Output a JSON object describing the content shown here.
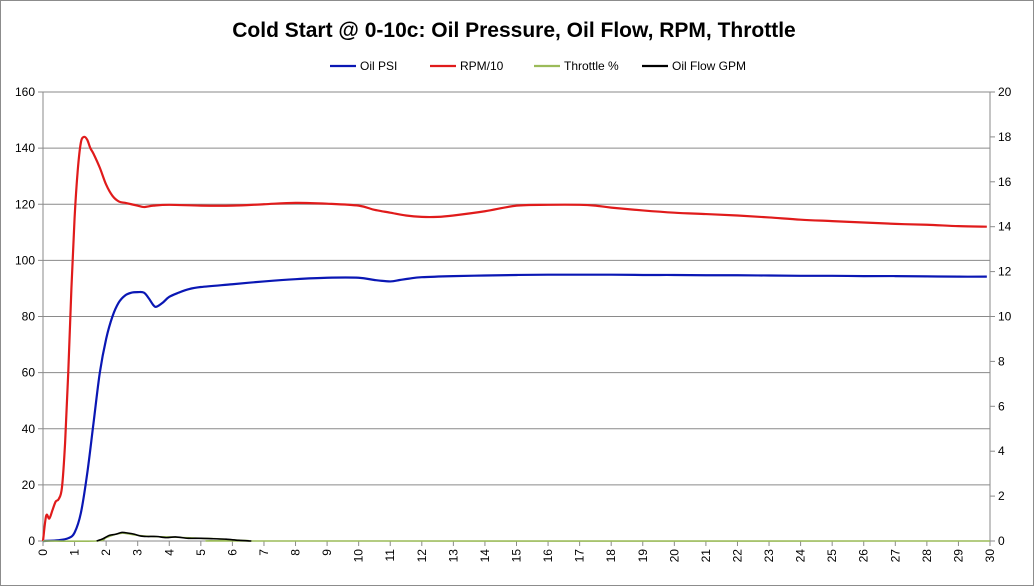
{
  "chart_data": {
    "type": "line",
    "title": "Cold Start @ 0-10c: Oil Pressure, Oil Flow, RPM, Throttle",
    "xlabel": "",
    "ylabel": "",
    "y2label": "",
    "xlim": [
      0,
      30
    ],
    "ylim": [
      0,
      160
    ],
    "y2lim": [
      0,
      20
    ],
    "x_ticks": [
      0,
      1,
      2,
      3,
      4,
      5,
      6,
      7,
      8,
      9,
      10,
      11,
      12,
      13,
      14,
      15,
      16,
      17,
      18,
      19,
      20,
      21,
      22,
      23,
      24,
      25,
      26,
      27,
      28,
      29,
      30
    ],
    "y_ticks": [
      0,
      20,
      40,
      60,
      80,
      100,
      120,
      140,
      160
    ],
    "y2_ticks": [
      0,
      2,
      4,
      6,
      8,
      10,
      12,
      14,
      16,
      18,
      20
    ],
    "grid": "horizontal",
    "legend_position": "top",
    "series": [
      {
        "name": "Oil PSI",
        "axis": "left",
        "color": "#0a17b4",
        "x": [
          0,
          0.5,
          0.8,
          1.0,
          1.2,
          1.4,
          1.6,
          1.8,
          2.0,
          2.2,
          2.4,
          2.6,
          2.8,
          3.0,
          3.2,
          3.35,
          3.5,
          3.6,
          3.8,
          4.0,
          4.3,
          4.6,
          5.0,
          6.0,
          7.0,
          8.0,
          9.0,
          10.0,
          10.5,
          11.0,
          11.3,
          11.6,
          12.0,
          13.0,
          14.0,
          15.0,
          16.0,
          17.0,
          18.0,
          19.0,
          20.0,
          21.0,
          22.0,
          23.0,
          24.0,
          25.0,
          26.0,
          27.0,
          28.0,
          29.0,
          29.9
        ],
        "values": [
          0,
          0.3,
          1,
          3,
          10,
          24,
          42,
          60,
          72,
          80,
          85,
          87.5,
          88.5,
          88.7,
          88.5,
          86.5,
          84,
          83.5,
          85,
          87,
          88.5,
          89.7,
          90.5,
          91.5,
          92.5,
          93.3,
          93.8,
          93.8,
          93,
          92.5,
          93,
          93.5,
          94,
          94.4,
          94.6,
          94.8,
          94.9,
          94.9,
          94.9,
          94.8,
          94.8,
          94.7,
          94.7,
          94.6,
          94.5,
          94.5,
          94.4,
          94.4,
          94.3,
          94.2,
          94.2
        ]
      },
      {
        "name": "RPM/10",
        "axis": "left",
        "color": "#e01b1b",
        "x": [
          0,
          0.1,
          0.2,
          0.3,
          0.4,
          0.5,
          0.6,
          0.7,
          0.8,
          0.9,
          1.0,
          1.1,
          1.2,
          1.3,
          1.4,
          1.5,
          1.6,
          1.8,
          2.0,
          2.2,
          2.4,
          2.6,
          2.8,
          3.0,
          3.2,
          3.5,
          4.0,
          5.0,
          6.0,
          7.0,
          8.0,
          9.0,
          10.0,
          10.5,
          11.0,
          11.5,
          12.0,
          12.5,
          13.0,
          14.0,
          15.0,
          16.0,
          17.0,
          17.5,
          18.0,
          19.0,
          20.0,
          21.0,
          22.0,
          23.0,
          24.0,
          25.0,
          26.0,
          27.0,
          28.0,
          29.0,
          29.9
        ],
        "values": [
          0,
          9,
          8,
          11,
          14,
          15,
          19,
          35,
          60,
          90,
          115,
          132,
          142,
          144,
          143,
          140,
          138,
          133,
          127,
          123,
          121,
          120.5,
          120,
          119.5,
          119,
          119.5,
          119.8,
          119.5,
          119.5,
          120,
          120.5,
          120.2,
          119.5,
          118,
          117,
          116,
          115.5,
          115.5,
          116,
          117.5,
          119.5,
          119.8,
          119.8,
          119.5,
          118.8,
          117.8,
          117,
          116.5,
          116,
          115.3,
          114.5,
          114,
          113.5,
          113,
          112.7,
          112.2,
          112
        ]
      },
      {
        "name": "Throttle %",
        "axis": "right",
        "color": "#9bbb59",
        "x": [
          0,
          1.7,
          2.0,
          2.3,
          2.5,
          2.7,
          3.0,
          3.5,
          4.0,
          4.5,
          5.0,
          5.5,
          6.0,
          6.5,
          7.0,
          30.0
        ],
        "values": [
          0,
          0,
          0.15,
          0.3,
          0.35,
          0.32,
          0.25,
          0.2,
          0.18,
          0.15,
          0.12,
          0.1,
          0.05,
          0.02,
          0,
          0
        ]
      },
      {
        "name": "Oil Flow GPM",
        "axis": "right",
        "color": "#000000",
        "x": [
          1.7,
          1.9,
          2.1,
          2.3,
          2.5,
          2.7,
          2.9,
          3.1,
          3.3,
          3.6,
          3.9,
          4.2,
          4.6,
          5.0,
          5.4,
          5.8,
          6.2,
          6.6
        ],
        "values": [
          0,
          0.1,
          0.25,
          0.3,
          0.38,
          0.35,
          0.3,
          0.22,
          0.2,
          0.2,
          0.15,
          0.18,
          0.12,
          0.12,
          0.1,
          0.08,
          0.03,
          0
        ]
      }
    ]
  }
}
